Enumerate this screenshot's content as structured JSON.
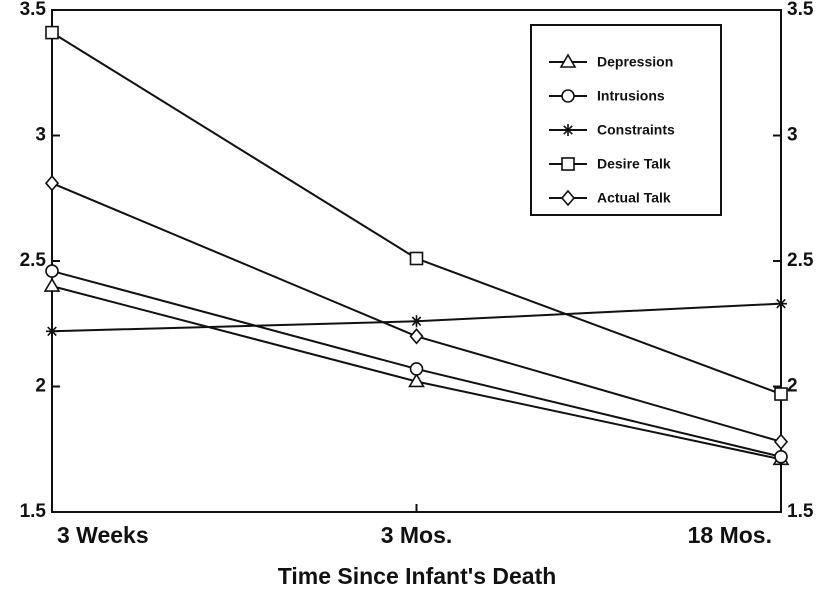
{
  "chart_data": {
    "type": "line",
    "xlabel": "Time Since Infant's Death",
    "categories": [
      "3 Weeks",
      "3 Mos.",
      "18 Mos."
    ],
    "series": [
      {
        "name": "Depression",
        "color": "#111111",
        "marker": "triangle",
        "values": [
          2.4,
          2.02,
          1.71
        ]
      },
      {
        "name": "Intrusions",
        "color": "#111111",
        "marker": "circle",
        "values": [
          2.46,
          2.07,
          1.72
        ]
      },
      {
        "name": "Constraints",
        "color": "#111111",
        "marker": "star",
        "values": [
          2.22,
          2.26,
          2.33
        ]
      },
      {
        "name": "Desire Talk",
        "color": "#111111",
        "marker": "square",
        "values": [
          3.41,
          2.51,
          1.97
        ]
      },
      {
        "name": "Actual Talk",
        "color": "#111111",
        "marker": "diamond",
        "values": [
          2.81,
          2.2,
          1.78
        ]
      }
    ],
    "ylim": [
      1.5,
      3.5
    ],
    "yticks": [
      1.5,
      2,
      2.5,
      3,
      3.5
    ],
    "legend": "upper right"
  }
}
